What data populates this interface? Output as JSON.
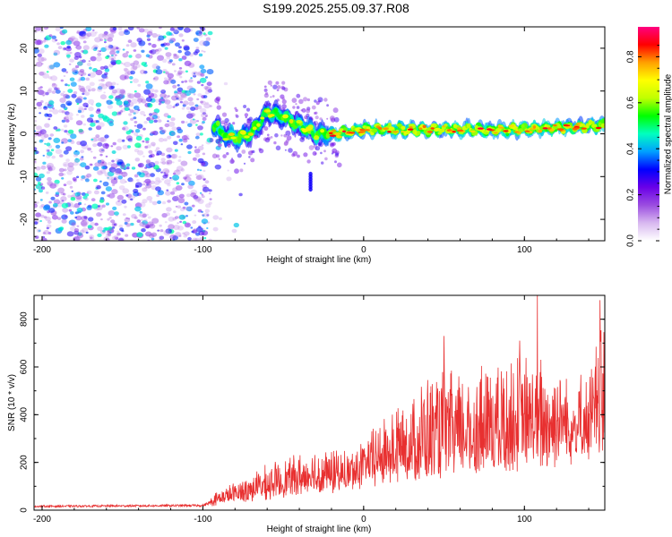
{
  "title": "S199.2025.255.09.37.R08",
  "chart_data": [
    {
      "type": "heatmap",
      "name": "spectrogram",
      "xlabel": "Height of straight line (km)",
      "ylabel": "Frequency (Hz)",
      "xlim": [
        -205,
        150
      ],
      "ylim": [
        -25,
        25
      ],
      "xticks": [
        -200,
        -100,
        0,
        100
      ],
      "yticks": [
        20,
        10,
        0,
        -10,
        -20
      ],
      "colorbar": {
        "label": "Normalized spectral amplitude",
        "range": [
          0.0,
          0.93
        ],
        "ticks": [
          0.0,
          0.2,
          0.4,
          0.6,
          0.8
        ],
        "colormap": [
          "#ffffff",
          "#d8b8f0",
          "#9b4de0",
          "#6a00e8",
          "#0000ff",
          "#00a0ff",
          "#00ffc0",
          "#00ff00",
          "#c0ff00",
          "#ffff00",
          "#ffa000",
          "#ff0000",
          "#ff0080"
        ]
      },
      "ridge": {
        "description_points_km": [
          -90,
          -80,
          -70,
          -60,
          -50,
          -40,
          -30,
          -20,
          0,
          50,
          100,
          150
        ],
        "frequency_hz": [
          0,
          -1,
          0,
          5,
          4,
          2,
          0,
          0,
          1,
          1,
          1,
          2
        ]
      },
      "noise_region_km": [
        -205,
        -95
      ],
      "isolated_feature": {
        "x_km": -33,
        "freq_range_hz": [
          -13,
          -9
        ]
      }
    },
    {
      "type": "line",
      "name": "snr",
      "xlabel": "Height of straight line (km)",
      "ylabel": "SNR (10 * v/v)",
      "xlim": [
        -205,
        150
      ],
      "ylim": [
        0,
        900
      ],
      "xticks": [
        -200,
        -100,
        0,
        100
      ],
      "yticks": [
        0,
        200,
        400,
        600,
        800
      ],
      "color": "#e83030",
      "envelope_km": [
        -205,
        -100,
        -90,
        -60,
        -30,
        -10,
        0,
        20,
        40,
        60,
        80,
        100,
        120,
        140,
        150
      ],
      "envelope_snr": [
        25,
        30,
        80,
        180,
        250,
        230,
        280,
        430,
        550,
        560,
        600,
        620,
        600,
        520,
        880
      ],
      "baseline_snr": [
        12,
        15,
        30,
        60,
        90,
        100,
        130,
        150,
        160,
        180,
        200,
        220,
        240,
        250,
        260
      ],
      "peaks": [
        {
          "x_km": 108,
          "snr": 900
        },
        {
          "x_km": 147,
          "snr": 880
        },
        {
          "x_km": 50,
          "snr": 730
        },
        {
          "x_km": 97,
          "snr": 710
        }
      ]
    }
  ]
}
